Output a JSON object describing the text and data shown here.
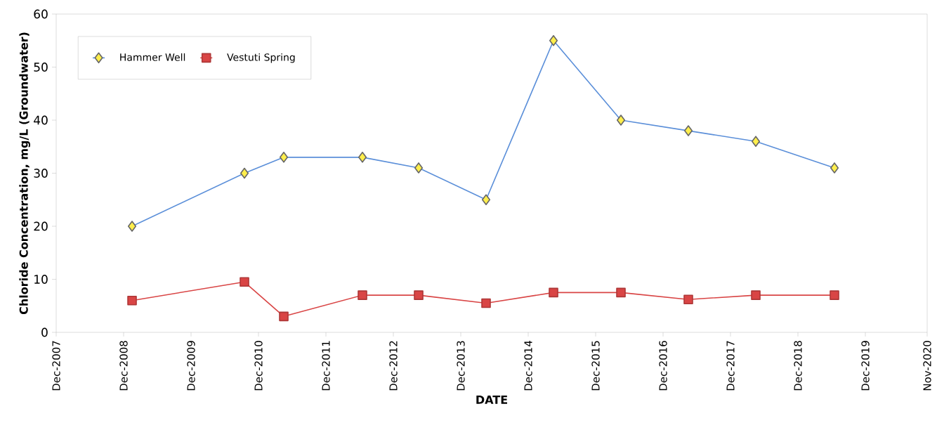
{
  "chart_data": {
    "type": "line",
    "xlabel": "DATE",
    "ylabel": "Chloride Concentration, mg/L (Groundwater)",
    "x": [
      "2009-01",
      "2010-09",
      "2011-04",
      "2012-06",
      "2013-04",
      "2014-04",
      "2015-04",
      "2016-04",
      "2017-04",
      "2018-04",
      "2019-06"
    ],
    "series": [
      {
        "name": "Hammer Well",
        "color": "#5b8fd9",
        "marker": "diamond",
        "values": [
          20,
          30,
          33,
          33,
          31,
          25,
          55,
          40,
          38,
          36,
          31
        ]
      },
      {
        "name": "Vestuti Spring",
        "color": "#d94545",
        "marker": "square",
        "values": [
          6,
          9.5,
          3,
          7,
          7,
          5.5,
          7.5,
          7.5,
          6.2,
          7,
          7
        ]
      }
    ],
    "xlim": [
      "2007-12-01",
      "2020-11-01"
    ],
    "xticks": [
      {
        "value": "2007-12-01",
        "label": "Dec-2007"
      },
      {
        "value": "2008-12-01",
        "label": "Dec-2008"
      },
      {
        "value": "2009-12-01",
        "label": "Dec-2009"
      },
      {
        "value": "2010-12-01",
        "label": "Dec-2010"
      },
      {
        "value": "2011-12-01",
        "label": "Dec-2011"
      },
      {
        "value": "2012-12-01",
        "label": "Dec-2012"
      },
      {
        "value": "2013-12-01",
        "label": "Dec-2013"
      },
      {
        "value": "2014-12-01",
        "label": "Dec-2014"
      },
      {
        "value": "2015-12-01",
        "label": "Dec-2015"
      },
      {
        "value": "2016-12-01",
        "label": "Dec-2016"
      },
      {
        "value": "2017-12-01",
        "label": "Dec-2017"
      },
      {
        "value": "2018-12-01",
        "label": "Dec-2018"
      },
      {
        "value": "2019-12-01",
        "label": "Dec-2019"
      },
      {
        "value": "2020-11-01",
        "label": "Nov-2020"
      }
    ],
    "ylim": [
      0,
      60
    ],
    "yticks": [
      0,
      10,
      20,
      30,
      40,
      50,
      60
    ],
    "grid": false,
    "legend": "top left",
    "line_style": "solid"
  }
}
